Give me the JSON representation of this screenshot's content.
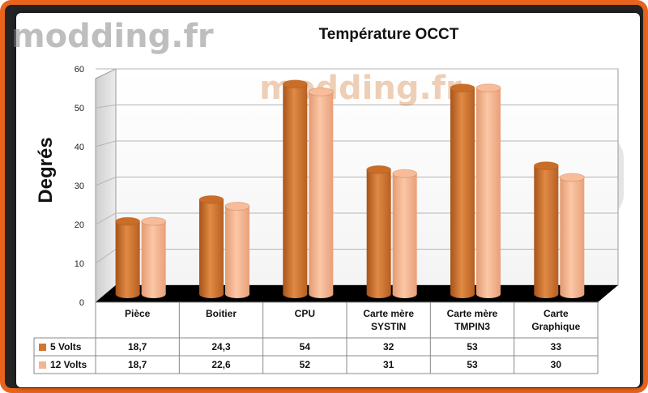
{
  "watermark": {
    "logo_text": "modding.fr",
    "center_text": "modding.fr"
  },
  "colors": {
    "series_5v": "#d2772f",
    "series_12v": "#f5b48d",
    "frame": "#e8641c",
    "floor": "#000000"
  },
  "chart_data": {
    "type": "bar",
    "title": "Température OCCT",
    "xlabel": "",
    "ylabel": "Degrés",
    "ylim": [
      0,
      60
    ],
    "yticks": [
      0,
      10,
      20,
      30,
      40,
      50,
      60
    ],
    "grid": true,
    "legend": "data-table",
    "categories": [
      [
        "Pièce"
      ],
      [
        "Boitier"
      ],
      [
        "CPU"
      ],
      [
        "Carte mère",
        "SYSTIN"
      ],
      [
        "Carte mère",
        "TMPIN3"
      ],
      [
        "Carte",
        "Graphique"
      ]
    ],
    "series": [
      {
        "name": "5 Volts",
        "values": [
          18.7,
          24.3,
          54,
          32,
          53,
          33
        ]
      },
      {
        "name": "12 Volts",
        "values": [
          18.7,
          22.6,
          52,
          31,
          53,
          30
        ]
      }
    ],
    "table_values": [
      [
        "18,7",
        "24,3",
        "54",
        "32",
        "53",
        "33"
      ],
      [
        "18,7",
        "22,6",
        "52",
        "31",
        "53",
        "30"
      ]
    ]
  }
}
